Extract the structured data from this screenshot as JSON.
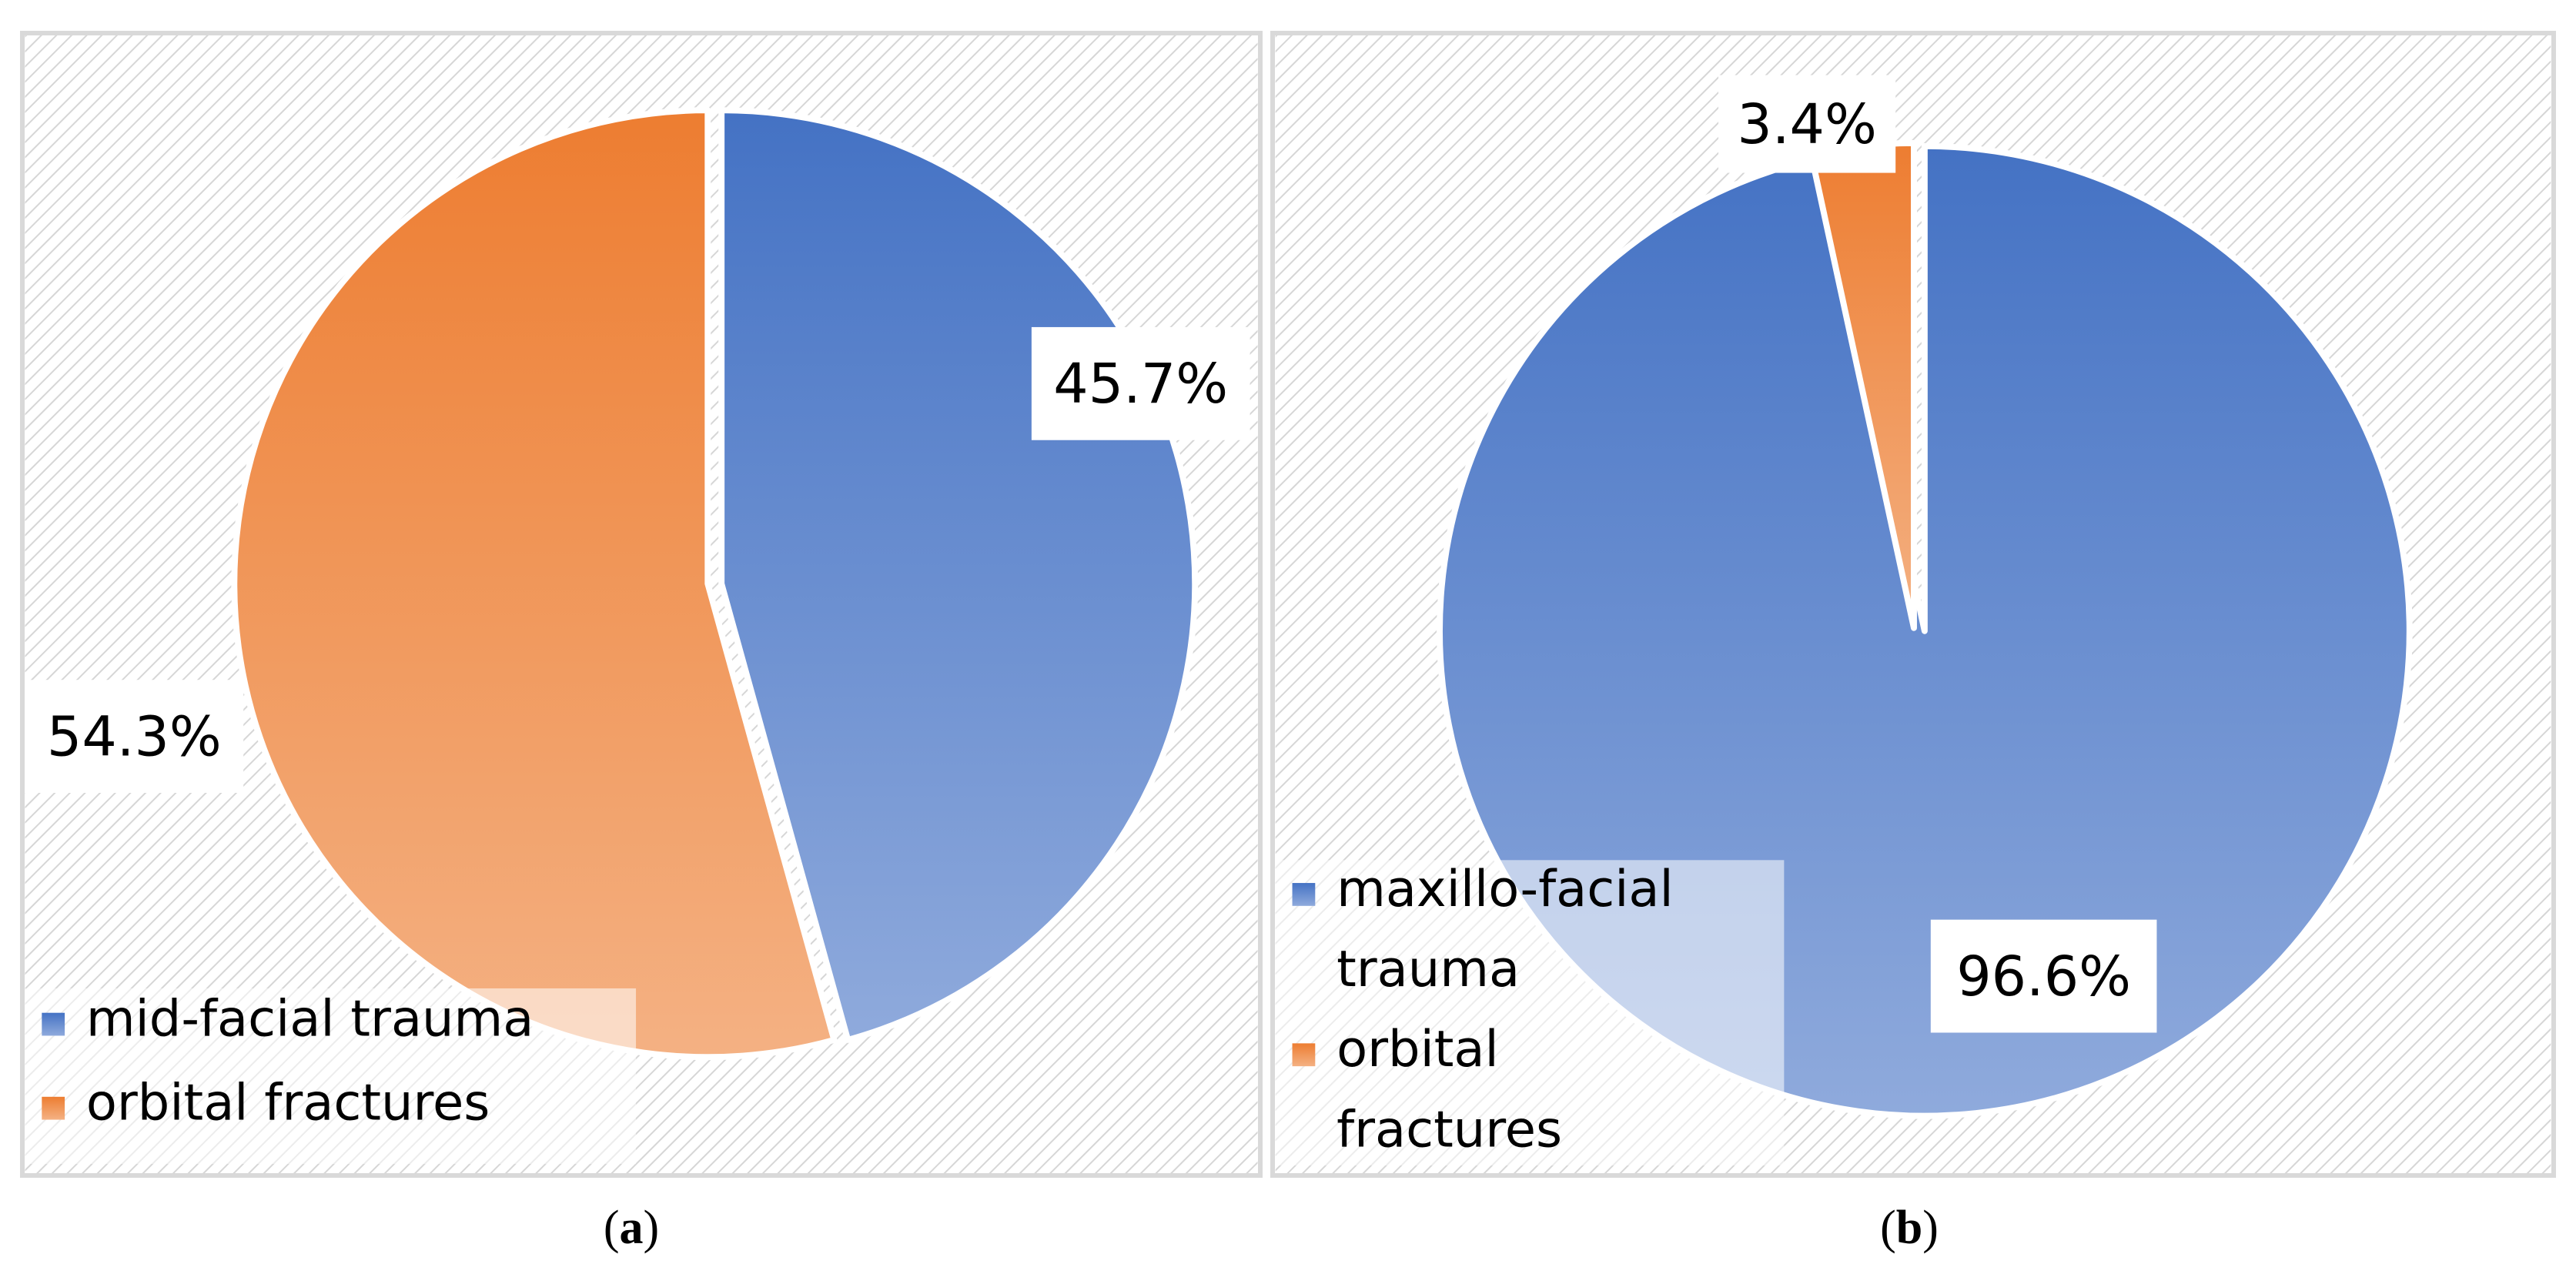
{
  "colors": {
    "blue_top": "#4472c4",
    "blue_bottom": "#8faadc",
    "orange_top": "#ed7d31",
    "orange_bottom": "#f4b183",
    "panel_border": "#d9d9d9"
  },
  "chart_data": [
    {
      "type": "pie",
      "panel_label": "a",
      "legend_position": "bottom-left",
      "slices": [
        {
          "label": "mid-facial trauma",
          "value": 45.7,
          "display": "45.7%",
          "color": "#4472c4"
        },
        {
          "label": "orbital fractures",
          "value": 54.3,
          "display": "54.3%",
          "color": "#ed7d31"
        }
      ]
    },
    {
      "type": "pie",
      "panel_label": "b",
      "legend_position": "bottom-left",
      "slices": [
        {
          "label": "maxillo-facial trauma",
          "label_lines": [
            "maxillo-facial",
            "trauma"
          ],
          "value": 96.6,
          "display": "96.6%",
          "color": "#4472c4"
        },
        {
          "label": "orbital fractures",
          "label_lines": [
            "orbital",
            "fractures"
          ],
          "value": 3.4,
          "display": "3.4%",
          "color": "#ed7d31"
        }
      ]
    }
  ]
}
